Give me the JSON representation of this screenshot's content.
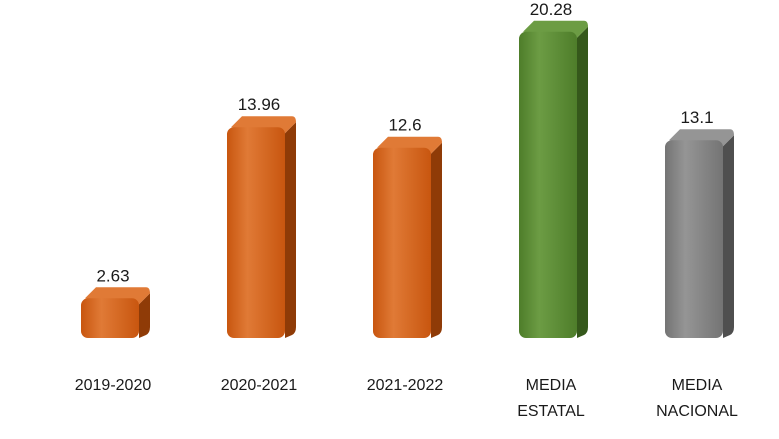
{
  "chart_data": {
    "type": "bar",
    "title": "",
    "xlabel": "",
    "ylabel": "",
    "categories": [
      [
        "2019-2020"
      ],
      [
        "2020-2021"
      ],
      [
        "2021-2022"
      ],
      [
        "MEDIA",
        "ESTATAL"
      ],
      [
        "MEDIA",
        "NACIONAL"
      ]
    ],
    "values": [
      2.63,
      13.96,
      12.6,
      20.28,
      13.1
    ],
    "value_labels": [
      "2.63",
      "13.96",
      "12.6",
      "20.28",
      "13.1"
    ],
    "ylim": [
      0,
      22
    ],
    "grid": false,
    "legend": "none",
    "colors": [
      "#c8560f",
      "#c8560f",
      "#c8560f",
      "#4e7d2a",
      "#747474"
    ],
    "side_colors": [
      "#8f3b07",
      "#8f3b07",
      "#8f3b07",
      "#35581b",
      "#4f4f4f"
    ],
    "highlight_colors": [
      "#e07a36",
      "#e07a36",
      "#e07a36",
      "#6c9c44",
      "#959595"
    ]
  }
}
